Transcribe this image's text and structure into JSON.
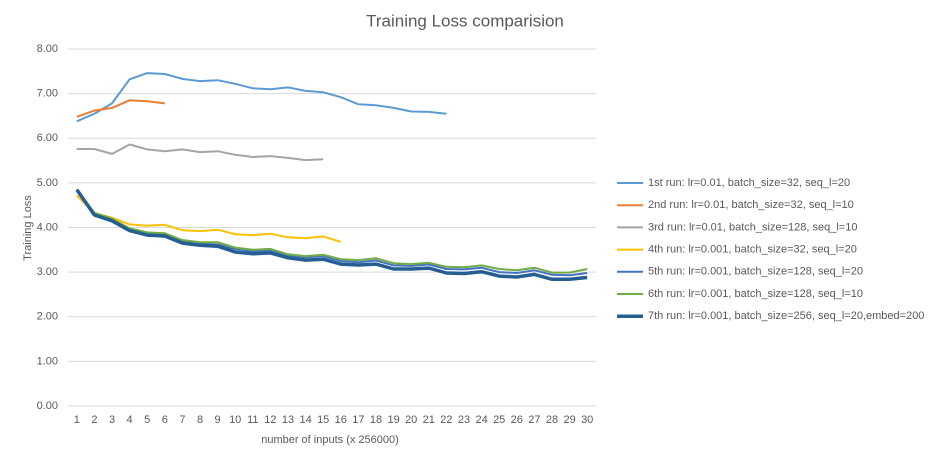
{
  "chart_data": {
    "type": "line",
    "title": "Training Loss comparision",
    "x_label": "number of inputs (x 256000)",
    "y_label": "Training Loss",
    "categories": [
      "1",
      "2",
      "3",
      "4",
      "5",
      "6",
      "7",
      "8",
      "9",
      "10",
      "11",
      "12",
      "13",
      "14",
      "15",
      "16",
      "17",
      "18",
      "19",
      "20",
      "21",
      "22",
      "23",
      "24",
      "25",
      "26",
      "27",
      "28",
      "29",
      "30"
    ],
    "series": [
      {
        "name": "1st run: lr=0.01, batch_size=32, seq_l=20",
        "color": "#5b9bd5",
        "line_width": 2,
        "values": [
          6.38,
          6.55,
          6.78,
          7.32,
          7.46,
          7.44,
          7.33,
          7.28,
          7.3,
          7.22,
          7.12,
          7.1,
          7.14,
          7.06,
          7.03,
          6.92,
          6.76,
          6.74,
          6.68,
          6.6,
          6.59,
          6.55,
          null,
          null,
          null,
          null,
          null,
          null,
          null,
          null
        ]
      },
      {
        "name": "2nd run: lr=0.01, batch_size=32, seq_l=10",
        "color": "#ed7d31",
        "line_width": 2,
        "values": [
          6.48,
          6.62,
          6.68,
          6.85,
          6.83,
          6.78,
          null,
          null,
          null,
          null,
          null,
          null,
          null,
          null,
          null,
          null,
          null,
          null,
          null,
          null,
          null,
          null,
          null,
          null,
          null,
          null,
          null,
          null,
          null,
          null
        ]
      },
      {
        "name": "3rd run: lr=0.01, batch_size=128, seq_l=10",
        "color": "#a5a5a5",
        "line_width": 2,
        "values": [
          5.76,
          5.76,
          5.65,
          5.86,
          5.75,
          5.71,
          5.75,
          5.69,
          5.71,
          5.63,
          5.58,
          5.6,
          5.56,
          5.51,
          5.53,
          null,
          null,
          null,
          null,
          null,
          null,
          null,
          null,
          null,
          null,
          null,
          null,
          null,
          null,
          null
        ]
      },
      {
        "name": "4th run: lr=0.001, batch_size=32, seq_l=20",
        "color": "#ffc000",
        "line_width": 2,
        "values": [
          4.72,
          4.32,
          4.22,
          4.07,
          4.04,
          4.06,
          3.94,
          3.92,
          3.95,
          3.85,
          3.83,
          3.86,
          3.78,
          3.76,
          3.8,
          3.68,
          null,
          null,
          null,
          null,
          null,
          null,
          null,
          null,
          null,
          null,
          null,
          null,
          null,
          null
        ]
      },
      {
        "name": "5th run: lr=0.001, batch_size=128, seq_l=20",
        "color": "#4472c4",
        "line_width": 2,
        "values": [
          4.85,
          4.3,
          4.18,
          3.96,
          3.87,
          3.85,
          3.7,
          3.64,
          3.62,
          3.52,
          3.47,
          3.49,
          3.38,
          3.33,
          3.36,
          3.25,
          3.22,
          3.26,
          3.15,
          3.14,
          3.17,
          3.07,
          3.06,
          3.1,
          3.0,
          2.98,
          3.04,
          2.94,
          2.93,
          2.98
        ]
      },
      {
        "name": "6th run: lr=0.001, batch_size=128, seq_l=10",
        "color": "#70ad47",
        "line_width": 2,
        "values": [
          4.85,
          4.33,
          4.2,
          3.98,
          3.89,
          3.87,
          3.72,
          3.67,
          3.67,
          3.55,
          3.5,
          3.52,
          3.4,
          3.36,
          3.39,
          3.29,
          3.27,
          3.31,
          3.2,
          3.18,
          3.21,
          3.12,
          3.11,
          3.15,
          3.07,
          3.04,
          3.1,
          2.99,
          2.99,
          3.07
        ]
      },
      {
        "name": "7th run: lr=0.001, batch_size=256, seq_l=20,embed=200",
        "color": "#255e91",
        "line_width": 3.5,
        "values": [
          4.85,
          4.28,
          4.15,
          3.93,
          3.83,
          3.81,
          3.65,
          3.6,
          3.58,
          3.45,
          3.41,
          3.43,
          3.32,
          3.27,
          3.29,
          3.18,
          3.16,
          3.18,
          3.07,
          3.07,
          3.09,
          2.98,
          2.97,
          3.01,
          2.91,
          2.89,
          2.95,
          2.84,
          2.84,
          2.88
        ]
      }
    ],
    "ylim": [
      0,
      8
    ],
    "yticks": [
      {
        "value": 0,
        "label": "0.00"
      },
      {
        "value": 1,
        "label": "1.00"
      },
      {
        "value": 2,
        "label": "2.00"
      },
      {
        "value": 3,
        "label": "3.00"
      },
      {
        "value": 4,
        "label": "4.00"
      },
      {
        "value": 5,
        "label": "5.00"
      },
      {
        "value": 6,
        "label": "6.00"
      },
      {
        "value": 7,
        "label": "7.00"
      },
      {
        "value": 8,
        "label": "8.00"
      }
    ],
    "grid": true,
    "legend": "right"
  }
}
